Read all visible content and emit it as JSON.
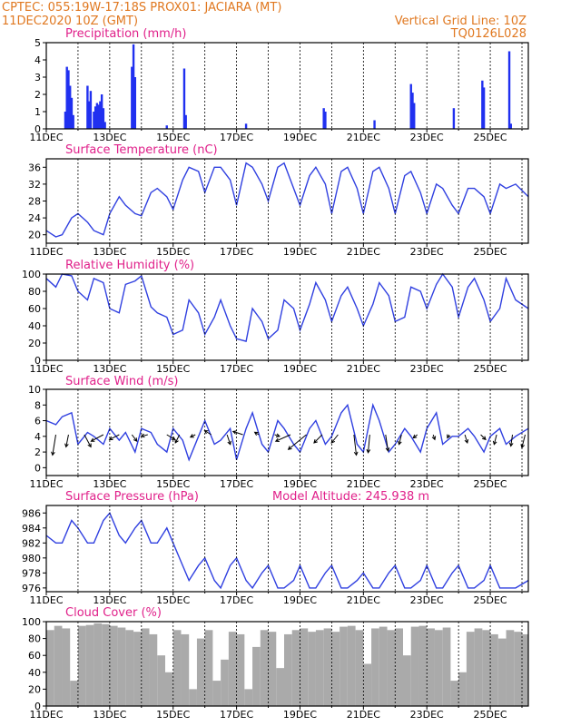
{
  "header": {
    "left_line1": "CPTEC:   055:19W-17:18S   PROX01: JACIARA (MT)",
    "left_line2": "11DEC2020  10Z (GMT)",
    "right_line1": "Vertical Grid Line: 10Z",
    "right_line2": "TQ0126L028"
  },
  "colors": {
    "header": "#e07820",
    "panel_title": "#e0208a",
    "series": "#3040e0",
    "bars": "#2030f0",
    "cloud": "#aaaaaa"
  },
  "x_ticks": [
    "11DEC",
    "13DEC",
    "15DEC",
    "17DEC",
    "19DEC",
    "21DEC",
    "23DEC",
    "25DEC"
  ],
  "chart_data": [
    {
      "type": "bar",
      "title": "Precipitation  (mm/h)",
      "ylim": [
        0,
        5
      ],
      "yticks": [
        0,
        1,
        2,
        3,
        4,
        5
      ],
      "x_unit": "days since 11DEC 10Z",
      "xlim": [
        0,
        15.2
      ],
      "x": [
        0.6,
        0.65,
        0.7,
        0.75,
        0.8,
        0.85,
        1.3,
        1.35,
        1.4,
        1.5,
        1.55,
        1.6,
        1.65,
        1.7,
        1.75,
        1.8,
        1.85,
        2.7,
        2.75,
        2.8,
        3.8,
        4.35,
        4.4,
        6.3,
        8.75,
        8.8,
        10.35,
        11.5,
        11.55,
        11.6,
        12.85,
        13.75,
        13.8,
        14.6,
        14.65
      ],
      "values": [
        1.0,
        3.6,
        3.4,
        2.5,
        1.8,
        0.8,
        2.5,
        1.6,
        2.2,
        1.0,
        1.3,
        1.5,
        1.4,
        1.6,
        2.0,
        1.2,
        0.4,
        3.6,
        4.9,
        3.0,
        0.2,
        3.5,
        0.8,
        0.3,
        1.2,
        1.0,
        0.5,
        2.6,
        2.1,
        1.5,
        1.2,
        2.8,
        2.4,
        4.5,
        0.3
      ]
    },
    {
      "type": "line",
      "title": "Surface Temperature (nC)",
      "ylim": [
        18,
        38
      ],
      "yticks": [
        20,
        24,
        28,
        32,
        36
      ],
      "x_unit": "days since 11DEC 10Z",
      "x": [
        0,
        0.3,
        0.5,
        0.8,
        1.0,
        1.3,
        1.5,
        1.8,
        2.0,
        2.3,
        2.5,
        2.8,
        3.0,
        3.3,
        3.5,
        3.8,
        4.0,
        4.3,
        4.5,
        4.8,
        5.0,
        5.3,
        5.5,
        5.8,
        6.0,
        6.3,
        6.5,
        6.8,
        7.0,
        7.3,
        7.5,
        7.8,
        8.0,
        8.3,
        8.5,
        8.8,
        9.0,
        9.3,
        9.5,
        9.8,
        10.0,
        10.3,
        10.5,
        10.8,
        11.0,
        11.3,
        11.5,
        11.8,
        12.0,
        12.3,
        12.5,
        12.8,
        13.0,
        13.3,
        13.5,
        13.8,
        14.0,
        14.3,
        14.5,
        14.8,
        15.2
      ],
      "values": [
        21,
        19.5,
        20,
        24,
        25,
        23,
        21,
        20,
        25,
        29,
        27,
        25,
        24.5,
        30,
        31,
        29,
        26,
        33,
        36,
        35,
        30,
        36,
        36,
        33,
        27,
        37,
        36,
        32,
        28,
        36,
        37,
        31,
        27,
        34,
        36,
        32,
        25,
        35,
        36,
        31,
        25,
        35,
        36,
        31,
        25,
        34,
        35,
        30,
        25,
        32,
        31,
        27,
        25,
        31,
        31,
        29,
        25,
        32,
        31,
        32,
        29
      ]
    },
    {
      "type": "line",
      "title": "Relative Humidity (%)",
      "ylim": [
        0,
        100
      ],
      "yticks": [
        0,
        20,
        40,
        60,
        80,
        100
      ],
      "x_unit": "days since 11DEC 10Z",
      "x": [
        0,
        0.3,
        0.5,
        0.8,
        1.0,
        1.3,
        1.5,
        1.8,
        2.0,
        2.3,
        2.5,
        2.8,
        3.0,
        3.3,
        3.5,
        3.8,
        4.0,
        4.3,
        4.5,
        4.8,
        5.0,
        5.3,
        5.5,
        5.8,
        6.0,
        6.3,
        6.5,
        6.8,
        7.0,
        7.3,
        7.5,
        7.8,
        8.0,
        8.3,
        8.5,
        8.8,
        9.0,
        9.3,
        9.5,
        9.8,
        10.0,
        10.3,
        10.5,
        10.8,
        11.0,
        11.3,
        11.5,
        11.8,
        12.0,
        12.3,
        12.5,
        12.8,
        13.0,
        13.3,
        13.5,
        13.8,
        14.0,
        14.3,
        14.5,
        14.8,
        15.2
      ],
      "values": [
        95,
        85,
        100,
        98,
        80,
        70,
        95,
        90,
        60,
        55,
        88,
        92,
        98,
        62,
        55,
        50,
        30,
        35,
        70,
        55,
        30,
        50,
        70,
        40,
        25,
        22,
        60,
        45,
        25,
        35,
        70,
        60,
        35,
        65,
        90,
        70,
        45,
        75,
        85,
        60,
        40,
        65,
        90,
        75,
        45,
        50,
        85,
        80,
        60,
        88,
        100,
        85,
        50,
        85,
        95,
        70,
        45,
        60,
        95,
        70,
        60
      ]
    },
    {
      "type": "line",
      "title": "Surface Wind (m/s)",
      "ylim": [
        -1,
        10
      ],
      "yticks": [
        0,
        2,
        4,
        6,
        8,
        10
      ],
      "x_unit": "days since 11DEC 10Z",
      "x": [
        0,
        0.3,
        0.5,
        0.8,
        1.0,
        1.3,
        1.5,
        1.8,
        2.0,
        2.3,
        2.5,
        2.8,
        3.0,
        3.3,
        3.5,
        3.8,
        4.0,
        4.3,
        4.5,
        4.8,
        5.0,
        5.3,
        5.5,
        5.8,
        6.0,
        6.3,
        6.5,
        6.8,
        7.0,
        7.3,
        7.5,
        7.8,
        8.0,
        8.3,
        8.5,
        8.8,
        9.0,
        9.3,
        9.5,
        9.8,
        10.0,
        10.3,
        10.5,
        10.8,
        11.0,
        11.3,
        11.5,
        11.8,
        12.0,
        12.3,
        12.5,
        12.8,
        13.0,
        13.3,
        13.5,
        13.8,
        14.0,
        14.3,
        14.5,
        14.8,
        15.2
      ],
      "values": [
        6,
        5.5,
        6.5,
        7,
        3,
        4.5,
        4,
        3,
        5,
        3.5,
        4.5,
        2,
        5,
        4.5,
        3,
        2,
        5,
        3.5,
        1,
        4,
        6,
        3,
        3.5,
        5,
        1,
        5,
        7,
        3,
        2,
        6,
        5,
        3,
        2,
        5,
        6,
        3,
        4,
        7,
        8,
        3,
        2,
        8,
        6,
        2,
        3,
        5,
        4,
        2,
        5,
        7,
        3,
        4,
        4,
        5,
        4,
        2,
        4,
        5,
        3,
        4,
        5
      ],
      "arrows_x": [
        0.3,
        0.7,
        1.2,
        1.8,
        2.3,
        2.7,
        3.2,
        3.8,
        4.2,
        4.7,
        5.2,
        5.7,
        6.2,
        6.7,
        7.2,
        7.7,
        8.2,
        8.7,
        9.2,
        9.7,
        10.2,
        10.7,
        11.2,
        11.7,
        12.2,
        12.7,
        13.2,
        13.7,
        14.2,
        14.7,
        15.1
      ],
      "arrows_u": [
        -0.4,
        -0.3,
        0.8,
        -1.5,
        -1.2,
        0.6,
        -0.8,
        1.0,
        -0.5,
        -0.6,
        -0.8,
        0.4,
        -1.2,
        -0.5,
        0.6,
        -1.8,
        -2.2,
        -1.0,
        -0.8,
        0.3,
        -0.2,
        0.3,
        -0.3,
        -0.5,
        0.2,
        -0.2,
        0.3,
        0.6,
        -0.3,
        -0.2,
        -0.4
      ],
      "arrows_v": [
        -2.5,
        -1.5,
        -1.5,
        -0.8,
        -0.6,
        -0.8,
        -0.2,
        -0.6,
        -1.0,
        -0.3,
        0.5,
        -1.2,
        0.4,
        0.3,
        -0.2,
        -0.8,
        -1.8,
        -1.0,
        -1.0,
        -2.5,
        -2.2,
        -2.0,
        -1.2,
        -0.4,
        -0.6,
        -0.4,
        -1.0,
        -0.6,
        -1.2,
        -1.4,
        -1.6
      ]
    },
    {
      "type": "line",
      "title": "Surface Pressure (hPa)",
      "annotation": "Model Altitude: 245.938  m",
      "ylim": [
        975.5,
        987
      ],
      "yticks": [
        976,
        978,
        980,
        982,
        984,
        986
      ],
      "x_unit": "days since 11DEC 10Z",
      "x": [
        0,
        0.3,
        0.5,
        0.8,
        1.0,
        1.3,
        1.5,
        1.8,
        2.0,
        2.3,
        2.5,
        2.8,
        3.0,
        3.3,
        3.5,
        3.8,
        4.0,
        4.3,
        4.5,
        4.8,
        5.0,
        5.3,
        5.5,
        5.8,
        6.0,
        6.3,
        6.5,
        6.8,
        7.0,
        7.3,
        7.5,
        7.8,
        8.0,
        8.3,
        8.5,
        8.8,
        9.0,
        9.3,
        9.5,
        9.8,
        10.0,
        10.3,
        10.5,
        10.8,
        11.0,
        11.3,
        11.5,
        11.8,
        12.0,
        12.3,
        12.5,
        12.8,
        13.0,
        13.3,
        13.5,
        13.8,
        14.0,
        14.3,
        14.5,
        14.8,
        15.2
      ],
      "values": [
        983,
        982,
        982,
        985,
        984,
        982,
        982,
        985,
        986,
        983,
        982,
        984,
        985,
        982,
        982,
        984,
        982,
        979,
        977,
        979,
        980,
        977,
        976,
        979,
        980,
        977,
        976,
        978,
        979,
        976,
        976,
        977,
        979,
        976,
        976,
        978,
        979,
        976,
        976,
        977,
        978,
        976,
        976,
        978,
        979,
        976,
        976,
        977,
        979,
        976,
        976,
        978,
        979,
        976,
        976,
        977,
        979,
        976,
        976,
        976,
        977
      ]
    },
    {
      "type": "bar",
      "title": "Cloud Cover (%)",
      "ylim": [
        0,
        100
      ],
      "yticks": [
        0,
        20,
        40,
        60,
        80,
        100
      ],
      "x_unit": "days since 11DEC 10Z",
      "x": [
        0,
        0.25,
        0.5,
        0.75,
        1.0,
        1.25,
        1.5,
        1.75,
        2.0,
        2.25,
        2.5,
        2.75,
        3.0,
        3.25,
        3.5,
        3.75,
        4.0,
        4.25,
        4.5,
        4.75,
        5.0,
        5.25,
        5.5,
        5.75,
        6.0,
        6.25,
        6.5,
        6.75,
        7.0,
        7.25,
        7.5,
        7.75,
        8.0,
        8.25,
        8.5,
        8.75,
        9.0,
        9.25,
        9.5,
        9.75,
        10.0,
        10.25,
        10.5,
        10.75,
        11.0,
        11.25,
        11.5,
        11.75,
        12.0,
        12.25,
        12.5,
        12.75,
        13.0,
        13.25,
        13.5,
        13.75,
        14.0,
        14.25,
        14.5,
        14.75,
        15.0
      ],
      "values": [
        90,
        95,
        92,
        30,
        95,
        96,
        98,
        97,
        95,
        93,
        90,
        88,
        92,
        85,
        60,
        40,
        90,
        85,
        20,
        80,
        90,
        30,
        55,
        88,
        85,
        20,
        70,
        90,
        88,
        45,
        85,
        90,
        92,
        88,
        90,
        92,
        88,
        94,
        95,
        90,
        50,
        92,
        94,
        90,
        92,
        60,
        94,
        95,
        92,
        90,
        93,
        30,
        40,
        88,
        92,
        90,
        85,
        80,
        90,
        88,
        85
      ]
    }
  ]
}
